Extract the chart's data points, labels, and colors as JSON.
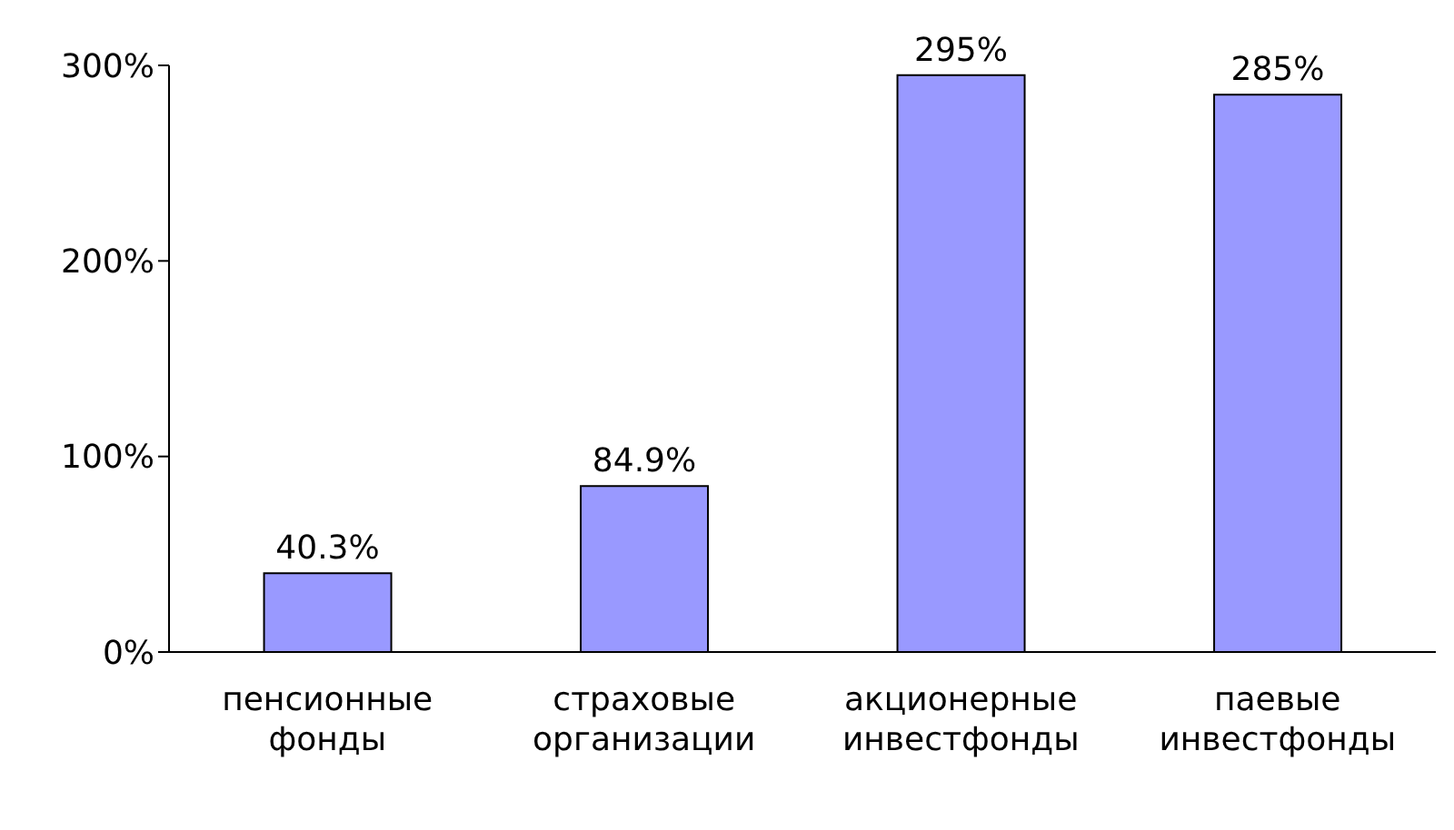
{
  "chart_data": {
    "type": "bar",
    "categories": [
      "пенсионные фонды",
      "страховые организации",
      "акционерные инвестфонды",
      "паевые инвестфонды"
    ],
    "values": [
      40.3,
      84.9,
      295,
      285
    ],
    "value_labels": [
      "40.3%",
      "84.9%",
      "295%",
      "285%"
    ],
    "color": "#9999ff",
    "ylim": [
      0,
      300
    ],
    "yticks": [
      {
        "value": 0,
        "label": "0%"
      },
      {
        "value": 100,
        "label": "100%"
      },
      {
        "value": 200,
        "label": "200%"
      },
      {
        "value": 300,
        "label": "300%"
      }
    ],
    "grid": false
  }
}
